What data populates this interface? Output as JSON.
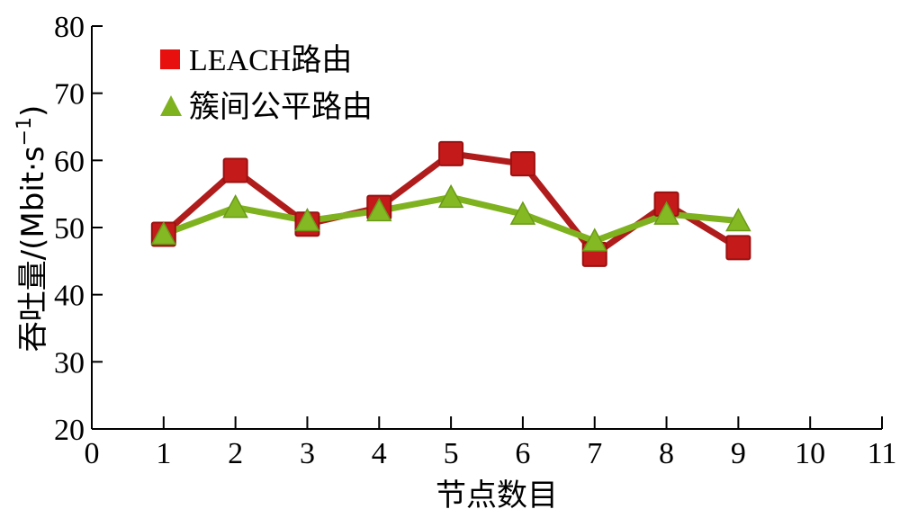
{
  "chart_data": {
    "type": "line",
    "title": "",
    "xlabel": "节点数目",
    "ylabel": "吞吐量/(Mbit·s",
    "ylabel_exp": "−1",
    "ylabel_close": ")",
    "xlim": [
      0,
      11
    ],
    "ylim": [
      20,
      80
    ],
    "x_ticks": [
      0,
      1,
      2,
      3,
      4,
      5,
      6,
      7,
      8,
      9,
      10,
      11
    ],
    "y_ticks": [
      20,
      30,
      40,
      50,
      60,
      70,
      80
    ],
    "grid": false,
    "legend_position": "top-left",
    "x": [
      1,
      2,
      3,
      4,
      5,
      6,
      7,
      8,
      9
    ],
    "series": [
      {
        "name": "LEACH路由",
        "marker": "square",
        "color": "#c00000",
        "values": [
          49,
          58.5,
          50.5,
          53,
          61,
          59.5,
          46,
          53.5,
          47
        ]
      },
      {
        "name": "簇间公平路由",
        "marker": "triangle",
        "color": "#7fb21f",
        "values": [
          49,
          53,
          51,
          52.5,
          54.5,
          52,
          48,
          52,
          51
        ]
      }
    ]
  }
}
